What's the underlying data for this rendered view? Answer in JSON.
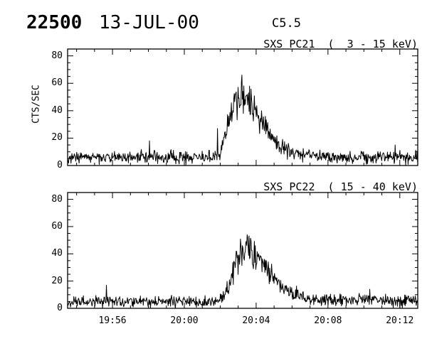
{
  "header": {
    "event_number": "22500",
    "date": "13-JUL-00",
    "goes_class": "C5.5"
  },
  "chart_data": [
    {
      "type": "line",
      "title": "SXS PC21  (  3 - 15 keV)",
      "instrument": "SXS PC21",
      "energy_band": "3 - 15 keV",
      "ylabel": "CTS/SEC",
      "ylim": [
        0,
        85
      ],
      "yticks": [
        0,
        20,
        40,
        60,
        80
      ],
      "y_minor_step": 5,
      "x_start_time": "19:53:30",
      "x_end_time": "20:13:00",
      "x_span_seconds": 1170,
      "xticks": [
        {
          "label": "19:56",
          "t": 150
        },
        {
          "label": "20:00",
          "t": 390
        },
        {
          "label": "20:04",
          "t": 630
        },
        {
          "label": "20:08",
          "t": 870
        },
        {
          "label": "20:12",
          "t": 1110
        }
      ],
      "x_minor_step_seconds": 60,
      "show_x_labels": false,
      "grid": false,
      "line_color": "#000000",
      "background_level_cts": 6,
      "noise_sigma": 2.2,
      "peak_value_cts": 66,
      "peak_time": "20:03",
      "profile": [
        [
          0,
          6
        ],
        [
          490,
          6
        ],
        [
          505,
          7
        ],
        [
          512,
          10
        ],
        [
          520,
          16
        ],
        [
          528,
          24
        ],
        [
          535,
          31
        ],
        [
          542,
          38
        ],
        [
          550,
          43
        ],
        [
          558,
          45
        ],
        [
          570,
          47
        ],
        [
          582,
          48
        ],
        [
          595,
          46
        ],
        [
          608,
          44
        ],
        [
          618,
          41
        ],
        [
          630,
          38
        ],
        [
          645,
          32
        ],
        [
          660,
          27
        ],
        [
          675,
          22
        ],
        [
          690,
          18
        ],
        [
          705,
          15
        ],
        [
          720,
          12
        ],
        [
          740,
          10
        ],
        [
          760,
          8.5
        ],
        [
          790,
          7.5
        ],
        [
          850,
          6.5
        ],
        [
          1170,
          6
        ]
      ],
      "spikes": [
        [
          273,
          18
        ],
        [
          500,
          27
        ],
        [
          583,
          66
        ],
        [
          608,
          58
        ],
        [
          1095,
          15
        ]
      ]
    },
    {
      "type": "line",
      "title": "SXS PC22  ( 15 - 40 keV)",
      "instrument": "SXS PC22",
      "energy_band": "15 - 40 keV",
      "ylabel": "",
      "ylim": [
        0,
        85
      ],
      "yticks": [
        0,
        20,
        40,
        60,
        80
      ],
      "y_minor_step": 5,
      "x_start_time": "19:53:30",
      "x_end_time": "20:13:00",
      "x_span_seconds": 1170,
      "xticks": [
        {
          "label": "19:56",
          "t": 150
        },
        {
          "label": "20:00",
          "t": 390
        },
        {
          "label": "20:04",
          "t": 630
        },
        {
          "label": "20:08",
          "t": 870
        },
        {
          "label": "20:12",
          "t": 1110
        }
      ],
      "x_minor_step_seconds": 60,
      "show_x_labels": true,
      "grid": false,
      "line_color": "#000000",
      "background_level_cts": 5,
      "noise_sigma": 2.2,
      "peak_value_cts": 54,
      "peak_time": "20:03",
      "profile": [
        [
          0,
          5
        ],
        [
          495,
          5
        ],
        [
          510,
          6.5
        ],
        [
          520,
          9
        ],
        [
          530,
          13
        ],
        [
          540,
          19
        ],
        [
          550,
          26
        ],
        [
          560,
          33
        ],
        [
          570,
          38
        ],
        [
          580,
          41
        ],
        [
          592,
          43
        ],
        [
          605,
          42
        ],
        [
          618,
          40
        ],
        [
          630,
          37
        ],
        [
          645,
          33
        ],
        [
          660,
          29
        ],
        [
          675,
          25
        ],
        [
          690,
          21
        ],
        [
          705,
          18
        ],
        [
          720,
          15
        ],
        [
          740,
          12
        ],
        [
          760,
          10
        ],
        [
          785,
          8
        ],
        [
          820,
          6.5
        ],
        [
          1170,
          5.5
        ]
      ],
      "spikes": [
        [
          130,
          17
        ],
        [
          600,
          54
        ],
        [
          613,
          50
        ],
        [
          1010,
          14
        ]
      ]
    }
  ],
  "colors": {
    "ink": "#000000",
    "background": "#ffffff"
  }
}
